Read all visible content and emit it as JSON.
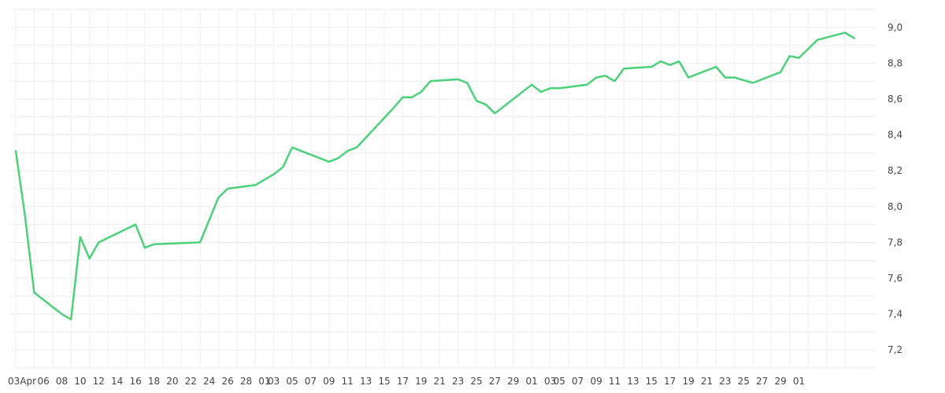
{
  "chart_data": {
    "type": "line",
    "title": "",
    "xlabel": "",
    "ylabel": "",
    "grid": true,
    "y_axis_position": "right",
    "ylim": [
      7.1,
      9.1
    ],
    "y_ticks": [
      "7,2",
      "7,4",
      "7,6",
      "7,8",
      "8,0",
      "8,2",
      "8,4",
      "8,6",
      "8,8",
      "9,0"
    ],
    "x_tick_labels": [
      "03Apr",
      "06",
      "08",
      "10",
      "12",
      "14",
      "16",
      "18",
      "20",
      "22",
      "24",
      "26",
      "28",
      "01",
      "03",
      "05",
      "07",
      "09",
      "11",
      "13",
      "15",
      "17",
      "19",
      "21",
      "23",
      "25",
      "27",
      "29",
      "01",
      "03",
      "05",
      "07",
      "09",
      "11",
      "13",
      "15",
      "17",
      "19",
      "21",
      "23",
      "25",
      "27",
      "29",
      "01"
    ],
    "series": [
      {
        "color": "#4cd17a",
        "points": [
          [
            "2000-04-03",
            8.31
          ],
          [
            "2000-04-04",
            7.95
          ],
          [
            "2000-04-05",
            7.52
          ],
          [
            "2000-04-06",
            7.48
          ],
          [
            "2000-04-07",
            7.44
          ],
          [
            "2000-04-08",
            7.4
          ],
          [
            "2000-04-09",
            7.37
          ],
          [
            "2000-04-10",
            7.83
          ],
          [
            "2000-04-11",
            7.71
          ],
          [
            "2000-04-12",
            7.8
          ],
          [
            "2000-04-14",
            7.85
          ],
          [
            "2000-04-16",
            7.9
          ],
          [
            "2000-04-17",
            7.77
          ],
          [
            "2000-04-18",
            7.79
          ],
          [
            "2000-04-23",
            7.8
          ],
          [
            "2000-04-25",
            8.05
          ],
          [
            "2000-04-26",
            8.1
          ],
          [
            "2000-04-29",
            8.12
          ],
          [
            "2000-04-30",
            8.15
          ],
          [
            "2000-05-01",
            8.18
          ],
          [
            "2000-05-02",
            8.22
          ],
          [
            "2000-05-03",
            8.33
          ],
          [
            "2000-05-07",
            8.25
          ],
          [
            "2000-05-08",
            8.27
          ],
          [
            "2000-05-09",
            8.31
          ],
          [
            "2000-05-10",
            8.33
          ],
          [
            "2000-05-14",
            8.55
          ],
          [
            "2000-05-15",
            8.61
          ],
          [
            "2000-05-16",
            8.61
          ],
          [
            "2000-05-17",
            8.64
          ],
          [
            "2000-05-18",
            8.7
          ],
          [
            "2000-05-21",
            8.71
          ],
          [
            "2000-05-22",
            8.69
          ],
          [
            "2000-05-23",
            8.59
          ],
          [
            "2000-05-24",
            8.57
          ],
          [
            "2000-05-25",
            8.52
          ],
          [
            "2000-05-29",
            8.68
          ],
          [
            "2000-05-30",
            8.64
          ],
          [
            "2000-05-31",
            8.66
          ],
          [
            "2000-06-01",
            8.66
          ],
          [
            "2000-06-04",
            8.68
          ],
          [
            "2000-06-05",
            8.72
          ],
          [
            "2000-06-06",
            8.73
          ],
          [
            "2000-06-07",
            8.7
          ],
          [
            "2000-06-08",
            8.77
          ],
          [
            "2000-06-11",
            8.78
          ],
          [
            "2000-06-12",
            8.81
          ],
          [
            "2000-06-13",
            8.79
          ],
          [
            "2000-06-14",
            8.81
          ],
          [
            "2000-06-15",
            8.72
          ],
          [
            "2000-06-18",
            8.78
          ],
          [
            "2000-06-19",
            8.72
          ],
          [
            "2000-06-20",
            8.72
          ],
          [
            "2000-06-22",
            8.69
          ],
          [
            "2000-06-25",
            8.75
          ],
          [
            "2000-06-26",
            8.84
          ],
          [
            "2000-06-27",
            8.83
          ],
          [
            "2000-06-29",
            8.93
          ],
          [
            "2000-07-02",
            8.97
          ],
          [
            "2000-07-03",
            8.94
          ]
        ]
      }
    ]
  }
}
